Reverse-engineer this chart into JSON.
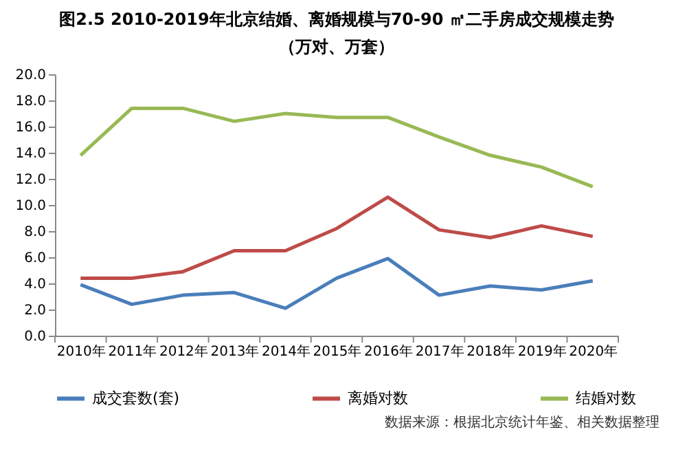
{
  "chart_data": {
    "type": "line",
    "title": "图2.5  2010-2019年北京结婚、离婚规模与70-90 ㎡二手房成交规模走势",
    "subtitle": "（万对、万套）",
    "categories": [
      "2010年",
      "2011年",
      "2012年",
      "2013年",
      "2014年",
      "2015年",
      "2016年",
      "2017年",
      "2018年",
      "2019年",
      "2020年"
    ],
    "series": [
      {
        "name": "成交套数(套)",
        "color": "#4a7ebb",
        "values": [
          3.9,
          2.4,
          3.1,
          3.3,
          2.1,
          4.4,
          5.9,
          3.1,
          3.8,
          3.5,
          4.2
        ]
      },
      {
        "name": "离婚对数",
        "color": "#be4b48",
        "values": [
          4.4,
          4.4,
          4.9,
          6.5,
          6.5,
          8.2,
          10.6,
          8.1,
          7.5,
          8.4,
          7.6
        ]
      },
      {
        "name": "结婚对数",
        "color": "#98b954",
        "values": [
          13.8,
          17.4,
          17.4,
          16.4,
          17.0,
          16.7,
          16.7,
          15.2,
          13.8,
          12.9,
          11.4
        ]
      }
    ],
    "ylim": [
      0,
      20
    ],
    "yticks": [
      {
        "value": 0,
        "label": "0.0"
      },
      {
        "value": 2,
        "label": "2.0"
      },
      {
        "value": 4,
        "label": "4.0"
      },
      {
        "value": 6,
        "label": "6.0"
      },
      {
        "value": 8,
        "label": "8.0"
      },
      {
        "value": 10,
        "label": "10.0"
      },
      {
        "value": 12,
        "label": "12.0"
      },
      {
        "value": 14,
        "label": "14.0"
      },
      {
        "value": 16,
        "label": "16.0"
      },
      {
        "value": 18,
        "label": "18.0"
      },
      {
        "value": 20,
        "label": "20.0"
      }
    ],
    "grid": false,
    "legend": "bottom",
    "marker": "none",
    "line_style": "solid",
    "annotations": [
      "数据来源：根据北京统计年鉴、相关数据整理"
    ]
  }
}
